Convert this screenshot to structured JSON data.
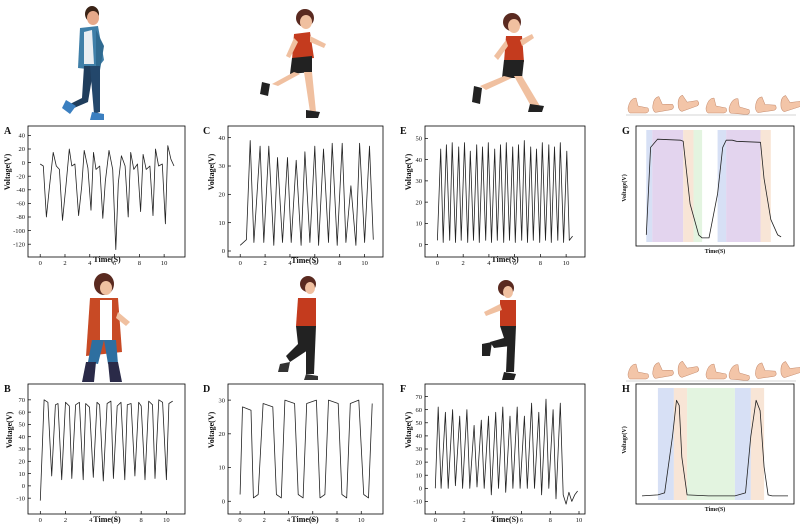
{
  "figure": {
    "panels": [
      {
        "id": "A",
        "figure": "walking-man"
      },
      {
        "id": "B",
        "figure": "walking-woman"
      },
      {
        "id": "C",
        "figure": "running-woman"
      },
      {
        "id": "D",
        "figure": "jogging-woman"
      },
      {
        "id": "E",
        "figure": "sprinting-woman"
      },
      {
        "id": "F",
        "figure": "jumping-woman"
      },
      {
        "id": "G",
        "figure": "foot-gait-sequence"
      },
      {
        "id": "H",
        "figure": "foot-gait-sequence"
      }
    ],
    "colors": {
      "line": "#222222",
      "axis": "#000000",
      "phase_blue": "#c9d6f2",
      "phase_purple": "#d9c6e8",
      "phase_orange": "#f5dcc8",
      "phase_green": "#d9f0d6",
      "skin": "#f3c5a8",
      "red_top": "#c43b1e"
    }
  },
  "chart_data": [
    {
      "id": "A",
      "type": "line",
      "xlabel": "Time(S)",
      "ylabel": "Voltage(V)",
      "xlim": [
        -0.5,
        11.2
      ],
      "ylim": [
        -130,
        45
      ],
      "xticks": [
        0,
        2,
        4,
        6,
        8,
        10
      ],
      "yticks": [
        40,
        20,
        0,
        -20,
        -40,
        -60,
        -80,
        -100,
        -120
      ],
      "x": [
        0,
        0.25,
        0.5,
        0.75,
        1.05,
        1.3,
        1.55,
        1.8,
        2.1,
        2.35,
        2.55,
        2.8,
        3.1,
        3.35,
        3.55,
        3.85,
        4.1,
        4.3,
        4.5,
        4.8,
        5.05,
        5.25,
        5.55,
        5.85,
        6.1,
        6.3,
        6.55,
        6.85,
        7.1,
        7.3,
        7.55,
        7.85,
        8.1,
        8.3,
        8.55,
        8.85,
        9.1,
        9.3,
        9.55,
        9.85,
        10.1,
        10.3,
        10.55,
        10.8
      ],
      "y": [
        -2,
        -5,
        -80,
        -35,
        15,
        -5,
        -10,
        -85,
        -30,
        20,
        -5,
        -2,
        -78,
        -35,
        18,
        -8,
        -70,
        15,
        -10,
        -5,
        -82,
        -28,
        18,
        -10,
        -128,
        -30,
        10,
        -5,
        -80,
        15,
        -10,
        -2,
        -72,
        12,
        -10,
        -5,
        -78,
        20,
        -5,
        -2,
        -90,
        25,
        5,
        -5
      ]
    },
    {
      "id": "B",
      "type": "line",
      "xlabel": "Time(S)",
      "ylabel": "Voltage(V)",
      "xlim": [
        -0.5,
        11
      ],
      "ylim": [
        -18,
        78
      ],
      "xticks": [
        0,
        2,
        4,
        6,
        8,
        10
      ],
      "yticks": [
        70,
        60,
        50,
        40,
        30,
        20,
        10,
        0,
        -10
      ],
      "x": [
        0,
        0.3,
        0.6,
        0.9,
        1.2,
        1.4,
        1.7,
        2.0,
        2.3,
        2.5,
        2.8,
        3.1,
        3.4,
        3.6,
        3.9,
        4.2,
        4.5,
        4.7,
        5.0,
        5.3,
        5.6,
        5.8,
        6.1,
        6.4,
        6.7,
        6.9,
        7.2,
        7.5,
        7.8,
        8.0,
        8.3,
        8.6,
        8.9,
        9.1,
        9.4,
        9.7,
        10.0,
        10.2,
        10.5
      ],
      "y": [
        -12,
        70,
        68,
        8,
        66,
        67,
        5,
        68,
        65,
        6,
        66,
        68,
        5,
        67,
        64,
        7,
        68,
        66,
        4,
        67,
        69,
        6,
        65,
        68,
        5,
        66,
        67,
        8,
        68,
        65,
        5,
        69,
        66,
        6,
        70,
        68,
        5,
        67,
        69
      ]
    },
    {
      "id": "C",
      "type": "line",
      "xlabel": "Time(S)",
      "ylabel": "Voltage(V)",
      "xlim": [
        -0.5,
        11
      ],
      "ylim": [
        0,
        42
      ],
      "xticks": [
        0,
        2,
        4,
        6,
        8,
        10
      ],
      "yticks": [
        0,
        10,
        20,
        30,
        40
      ],
      "x": [
        0,
        0.5,
        0.8,
        1.1,
        1.6,
        1.9,
        2.3,
        2.7,
        3.0,
        3.4,
        3.8,
        4.1,
        4.5,
        4.9,
        5.2,
        5.6,
        6.0,
        6.3,
        6.7,
        7.1,
        7.4,
        7.8,
        8.2,
        8.5,
        8.9,
        9.3,
        9.6,
        10.0,
        10.4,
        10.7
      ],
      "y": [
        2,
        4,
        39,
        3,
        37,
        3,
        37,
        2,
        33,
        3,
        33,
        3,
        32,
        2,
        35,
        3,
        37,
        2,
        36,
        3,
        38,
        2,
        38,
        3,
        23,
        2,
        38,
        3,
        37,
        4
      ]
    },
    {
      "id": "D",
      "type": "line",
      "xlabel": "Time(S)",
      "ylabel": "Voltage(V)",
      "xlim": [
        -0.5,
        11.3
      ],
      "ylim": [
        -2,
        33
      ],
      "xticks": [
        0,
        2,
        4,
        6,
        8,
        10
      ],
      "yticks": [
        0,
        10,
        20,
        30
      ],
      "x": [
        0,
        0.2,
        0.9,
        1.1,
        1.5,
        1.9,
        2.7,
        3.0,
        3.4,
        3.7,
        4.5,
        4.8,
        5.2,
        5.5,
        6.3,
        6.6,
        7.0,
        7.3,
        8.1,
        8.4,
        8.8,
        9.1,
        9.8,
        10.2,
        10.6,
        10.9
      ],
      "y": [
        2,
        28,
        27,
        1,
        2,
        29,
        28,
        2,
        1,
        30,
        29,
        2,
        1,
        29,
        30,
        1,
        2,
        30,
        29,
        2,
        1,
        29,
        30,
        2,
        1,
        29
      ]
    },
    {
      "id": "E",
      "type": "line",
      "xlabel": "Time(S)",
      "ylabel": "Voltage(V)",
      "xlim": [
        -0.5,
        11
      ],
      "ylim": [
        -3,
        53
      ],
      "xticks": [
        0,
        2,
        4,
        6,
        8,
        10
      ],
      "yticks": [
        0,
        10,
        20,
        30,
        40,
        50
      ],
      "x": [
        0,
        0.25,
        0.45,
        0.7,
        0.95,
        1.15,
        1.4,
        1.65,
        1.85,
        2.1,
        2.35,
        2.55,
        2.8,
        3.05,
        3.25,
        3.5,
        3.75,
        3.95,
        4.2,
        4.45,
        4.65,
        4.9,
        5.15,
        5.35,
        5.6,
        5.85,
        6.05,
        6.3,
        6.55,
        6.75,
        7.0,
        7.25,
        7.45,
        7.7,
        7.95,
        8.15,
        8.4,
        8.65,
        8.85,
        9.1,
        9.35,
        9.55,
        9.8,
        10.05,
        10.25,
        10.5
      ],
      "y": [
        2,
        45,
        1,
        47,
        2,
        48,
        1,
        46,
        2,
        48,
        1,
        44,
        2,
        47,
        1,
        46,
        2,
        48,
        1,
        45,
        2,
        47,
        1,
        48,
        2,
        46,
        1,
        47,
        2,
        49,
        1,
        46,
        2,
        45,
        1,
        48,
        2,
        47,
        1,
        46,
        2,
        48,
        1,
        44,
        2,
        4
      ]
    },
    {
      "id": "F",
      "type": "line",
      "xlabel": "Time(S)",
      "ylabel": "Voltage(V)",
      "xlim": [
        -0.3,
        10
      ],
      "ylim": [
        -15,
        75
      ],
      "xticks": [
        0,
        2,
        4,
        6,
        8,
        10
      ],
      "yticks": [
        70,
        60,
        50,
        40,
        30,
        20,
        10,
        0,
        -10
      ],
      "x": [
        0,
        0.2,
        0.4,
        0.7,
        0.9,
        1.2,
        1.4,
        1.7,
        1.9,
        2.2,
        2.4,
        2.7,
        2.9,
        3.2,
        3.4,
        3.7,
        3.9,
        4.2,
        4.4,
        4.7,
        4.9,
        5.2,
        5.4,
        5.7,
        5.9,
        6.2,
        6.4,
        6.7,
        6.9,
        7.2,
        7.4,
        7.7,
        7.9,
        8.2,
        8.4,
        8.7,
        8.9,
        9.1,
        9.3,
        9.5,
        9.7,
        9.9
      ],
      "y": [
        0,
        62,
        0,
        58,
        0,
        60,
        2,
        55,
        0,
        60,
        0,
        48,
        1,
        52,
        0,
        55,
        -5,
        58,
        0,
        62,
        -3,
        55,
        0,
        62,
        0,
        55,
        0,
        65,
        0,
        58,
        -5,
        68,
        0,
        60,
        -8,
        65,
        -5,
        -12,
        -3,
        -10,
        -5,
        -2
      ]
    },
    {
      "id": "G",
      "type": "line",
      "xlabel": "Time(S)",
      "ylabel": "Voltage(V)",
      "x": [
        0.05,
        0.1,
        0.18,
        0.45,
        0.48,
        0.56,
        0.66,
        0.7,
        0.74,
        0.78,
        0.88,
        0.94,
        0.98,
        1.03,
        1.05,
        1.1,
        1.38,
        1.42,
        1.5,
        1.58,
        1.62
      ],
      "y": [
        0.05,
        0.9,
        0.98,
        0.97,
        0.96,
        0.35,
        0.05,
        0.02,
        0.02,
        0.02,
        0.45,
        0.9,
        0.97,
        0.97,
        0.97,
        0.96,
        0.95,
        0.6,
        0.2,
        0.05,
        0.03
      ],
      "xlim": [
        0,
        1.7
      ],
      "ylim": [
        0,
        1.05
      ]
    },
    {
      "id": "H",
      "type": "line",
      "xlabel": "Time(S)",
      "ylabel": "Voltage(V)",
      "x": [
        0.0,
        0.12,
        0.17,
        0.23,
        0.26,
        0.28,
        0.3,
        0.34,
        0.5,
        0.7,
        0.78,
        0.82,
        0.86,
        0.89,
        0.92,
        0.95,
        0.98,
        1.1
      ],
      "y": [
        0.02,
        0.03,
        0.05,
        0.6,
        0.95,
        0.9,
        0.4,
        0.03,
        0.02,
        0.02,
        0.05,
        0.6,
        0.95,
        0.85,
        0.3,
        0.03,
        0.02,
        0.02
      ],
      "xlim": [
        0,
        1.1
      ],
      "ylim": [
        0,
        1.05
      ]
    }
  ]
}
